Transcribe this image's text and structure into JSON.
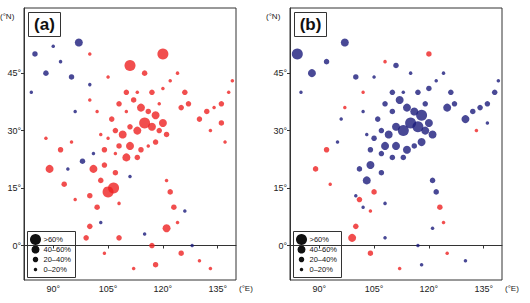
{
  "chart_data": [
    {
      "type": "scatter",
      "title": "(a)",
      "x_label": "(°E)",
      "y_label": "(°N)",
      "xlim": [
        82,
        140
      ],
      "ylim": [
        -9,
        62
      ],
      "xticks": [
        {
          "value": 90,
          "label": "90°"
        },
        {
          "value": 105,
          "label": "105°"
        },
        {
          "value": 120,
          "label": "120°"
        },
        {
          "value": 135,
          "label": "135°"
        }
      ],
      "yticks": [
        {
          "value": 0,
          "label": "0°"
        },
        {
          "value": 15,
          "label": "15°"
        },
        {
          "value": 30,
          "label": "30°"
        },
        {
          "value": 45,
          "label": "45°"
        }
      ],
      "size_legend": [
        {
          "label": ">60%",
          "min": 60
        },
        {
          "label": "40–60%",
          "min": 40
        },
        {
          "label": "20–40%",
          "min": 20
        },
        {
          "label": "0–20%",
          "min": 0
        }
      ],
      "series": [
        {
          "color": "#1c1c7c",
          "values": [
            [
              97,
              53,
              50
            ],
            [
              88,
              45,
              30
            ],
            [
              85,
              50,
              30
            ],
            [
              92,
              48,
              10
            ],
            [
              95,
              44,
              30
            ],
            [
              84,
              40,
              10
            ],
            [
              90,
              52,
              10
            ],
            [
              100,
              42,
              10
            ],
            [
              96,
              35,
              10
            ],
            [
              98,
              22,
              30
            ],
            [
              101,
              24,
              10
            ],
            [
              94,
              20,
              10
            ],
            [
              111,
              18,
              10
            ],
            [
              126,
              9,
              10
            ],
            [
              103,
              6,
              10
            ],
            [
              115,
              3,
              10
            ],
            [
              128,
              0,
              10
            ]
          ]
        },
        {
          "color": "#ee2222",
          "values": [
            [
              110,
              40,
              30
            ],
            [
              112,
              38,
              30
            ],
            [
              114,
              36,
              50
            ],
            [
              116,
              35,
              30
            ],
            [
              118,
              34,
              50
            ],
            [
              115,
              32,
              70
            ],
            [
              117,
              31,
              50
            ],
            [
              119,
              30,
              30
            ],
            [
              120,
              32,
              50
            ],
            [
              121,
              29,
              30
            ],
            [
              113,
              30,
              50
            ],
            [
              111,
              31,
              30
            ],
            [
              109,
              29,
              50
            ],
            [
              107,
              30,
              30
            ],
            [
              105,
              28,
              10
            ],
            [
              108,
              26,
              30
            ],
            [
              111,
              26,
              50
            ],
            [
              114,
              25,
              30
            ],
            [
              116,
              26,
              10
            ],
            [
              118,
              27,
              30
            ],
            [
              113,
              23,
              30
            ],
            [
              110,
              23,
              50
            ],
            [
              107,
              24,
              10
            ],
            [
              104,
              25,
              30
            ],
            [
              103,
              29,
              10
            ],
            [
              106,
              33,
              30
            ],
            [
              110,
              35,
              10
            ],
            [
              113,
              40,
              10
            ],
            [
              117,
              40,
              30
            ],
            [
              120,
              41,
              10
            ],
            [
              122,
              43,
              10
            ],
            [
              124,
              45,
              10
            ],
            [
              126,
              40,
              30
            ],
            [
              125,
              36,
              30
            ],
            [
              127,
              37,
              30
            ],
            [
              119,
              37,
              10
            ],
            [
              108,
              37,
              30
            ],
            [
              102,
              35,
              10
            ],
            [
              100,
              38,
              10
            ],
            [
              120,
              50,
              70
            ],
            [
              111,
              47,
              70
            ],
            [
              115,
              45,
              30
            ],
            [
              105,
              44,
              10
            ],
            [
              100,
              50,
              10
            ],
            [
              130,
              33,
              30
            ],
            [
              132,
              35,
              30
            ],
            [
              134,
              36,
              10
            ],
            [
              136,
              37,
              30
            ],
            [
              138,
              40,
              10
            ],
            [
              139,
              43,
              10
            ],
            [
              133,
              30,
              10
            ],
            [
              136,
              32,
              30
            ],
            [
              137,
              27,
              10
            ],
            [
              105,
              14,
              70
            ],
            [
              106.5,
              15,
              70
            ],
            [
              103,
              17,
              30
            ],
            [
              101,
              20,
              50
            ],
            [
              104,
              21,
              30
            ],
            [
              107,
              19,
              30
            ],
            [
              100,
              13,
              30
            ],
            [
              108,
              11,
              10
            ],
            [
              102,
              10,
              30
            ],
            [
              92,
              25,
              30
            ],
            [
              95,
              27,
              10
            ],
            [
              89,
              20,
              50
            ],
            [
              93,
              16,
              30
            ],
            [
              96,
              12,
              10
            ],
            [
              88,
              28,
              10
            ],
            [
              122,
              14,
              30
            ],
            [
              123,
              10,
              30
            ],
            [
              124,
              6,
              10
            ],
            [
              121,
              17,
              10
            ],
            [
              121,
              4.5,
              50
            ],
            [
              117,
              0,
              30
            ],
            [
              125,
              -2,
              30
            ],
            [
              130,
              -4,
              10
            ],
            [
              133,
              -6,
              10
            ],
            [
              118,
              -5,
              30
            ],
            [
              112,
              -6,
              10
            ],
            [
              108,
              2,
              30
            ],
            [
              104,
              -2,
              10
            ],
            [
              100,
              5,
              30
            ],
            [
              99,
              2,
              30
            ]
          ]
        }
      ]
    },
    {
      "type": "scatter",
      "title": "(b)",
      "x_label": "(°E)",
      "y_label": "(°N)",
      "xlim": [
        82,
        140
      ],
      "ylim": [
        -9,
        62
      ],
      "xticks": [
        {
          "value": 90,
          "label": "90°"
        },
        {
          "value": 105,
          "label": "105°"
        },
        {
          "value": 120,
          "label": "120°"
        },
        {
          "value": 135,
          "label": "135°"
        }
      ],
      "yticks": [
        {
          "value": 0,
          "label": "0°"
        },
        {
          "value": 15,
          "label": "15°"
        },
        {
          "value": 30,
          "label": "30°"
        },
        {
          "value": 45,
          "label": "45°"
        }
      ],
      "size_legend": [
        {
          "label": ">60%",
          "min": 60
        },
        {
          "label": "40–60%",
          "min": 40
        },
        {
          "label": "20–40%",
          "min": 20
        },
        {
          "label": "0–20%",
          "min": 0
        }
      ],
      "series": [
        {
          "color": "#ee2222",
          "values": [
            [
              120,
              50,
              30
            ],
            [
              108,
              48,
              10
            ],
            [
              92,
              25,
              30
            ],
            [
              89,
              20,
              30
            ],
            [
              93,
              16,
              10
            ],
            [
              105,
              14,
              30
            ],
            [
              101,
              12,
              30
            ],
            [
              104,
              9,
              10
            ],
            [
              99,
              2,
              50
            ],
            [
              100,
              5,
              30
            ],
            [
              104,
              -2,
              30
            ],
            [
              112,
              -6,
              10
            ],
            [
              123,
              10,
              30
            ],
            [
              124,
              6,
              10
            ],
            [
              125,
              -2,
              10
            ],
            [
              97,
              36,
              10
            ],
            [
              102,
              40,
              10
            ],
            [
              133,
              30,
              10
            ]
          ]
        },
        {
          "color": "#1c1c7c",
          "values": [
            [
              84,
              50,
              70
            ],
            [
              97,
              53,
              50
            ],
            [
              88,
              45,
              50
            ],
            [
              92,
              48,
              30
            ],
            [
              85,
              40,
              10
            ],
            [
              100,
              44,
              30
            ],
            [
              105,
              44,
              10
            ],
            [
              111,
              47,
              30
            ],
            [
              115,
              45,
              10
            ],
            [
              96,
              33,
              10
            ],
            [
              110,
              40,
              30
            ],
            [
              112,
              38,
              50
            ],
            [
              114,
              36,
              50
            ],
            [
              116,
              35,
              50
            ],
            [
              118,
              34,
              70
            ],
            [
              115,
              32,
              70
            ],
            [
              117,
              31,
              70
            ],
            [
              119,
              30,
              50
            ],
            [
              120,
              32,
              50
            ],
            [
              121,
              29,
              50
            ],
            [
              113,
              30,
              70
            ],
            [
              111,
              31,
              50
            ],
            [
              109,
              29,
              50
            ],
            [
              107,
              30,
              30
            ],
            [
              105,
              28,
              30
            ],
            [
              108,
              26,
              50
            ],
            [
              111,
              26,
              50
            ],
            [
              114,
              25,
              50
            ],
            [
              116,
              26,
              30
            ],
            [
              118,
              27,
              50
            ],
            [
              113,
              23,
              30
            ],
            [
              110,
              23,
              30
            ],
            [
              107,
              24,
              30
            ],
            [
              104,
              25,
              30
            ],
            [
              103,
              29,
              10
            ],
            [
              106,
              33,
              30
            ],
            [
              110,
              35,
              30
            ],
            [
              113,
              40,
              10
            ],
            [
              117,
              40,
              30
            ],
            [
              120,
              41,
              30
            ],
            [
              122,
              43,
              10
            ],
            [
              124,
              45,
              10
            ],
            [
              126,
              40,
              30
            ],
            [
              125,
              36,
              50
            ],
            [
              127,
              37,
              30
            ],
            [
              119,
              37,
              30
            ],
            [
              108,
              37,
              30
            ],
            [
              102,
              35,
              10
            ],
            [
              130,
              33,
              50
            ],
            [
              132,
              35,
              30
            ],
            [
              134,
              36,
              30
            ],
            [
              136,
              37,
              30
            ],
            [
              138,
              40,
              30
            ],
            [
              139,
              43,
              10
            ],
            [
              136,
              32,
              10
            ],
            [
              103,
              17,
              50
            ],
            [
              101,
              20,
              30
            ],
            [
              104,
              21,
              50
            ],
            [
              107,
              19,
              30
            ],
            [
              100,
              13,
              10
            ],
            [
              108,
              11,
              10
            ],
            [
              102,
              10,
              10
            ],
            [
              95,
              27,
              10
            ],
            [
              122,
              14,
              30
            ],
            [
              121,
              17,
              30
            ],
            [
              121,
              4.5,
              10
            ],
            [
              117,
              0,
              10
            ],
            [
              130,
              -4,
              10
            ],
            [
              118,
              -5,
              10
            ],
            [
              108,
              2,
              10
            ]
          ]
        }
      ]
    }
  ]
}
